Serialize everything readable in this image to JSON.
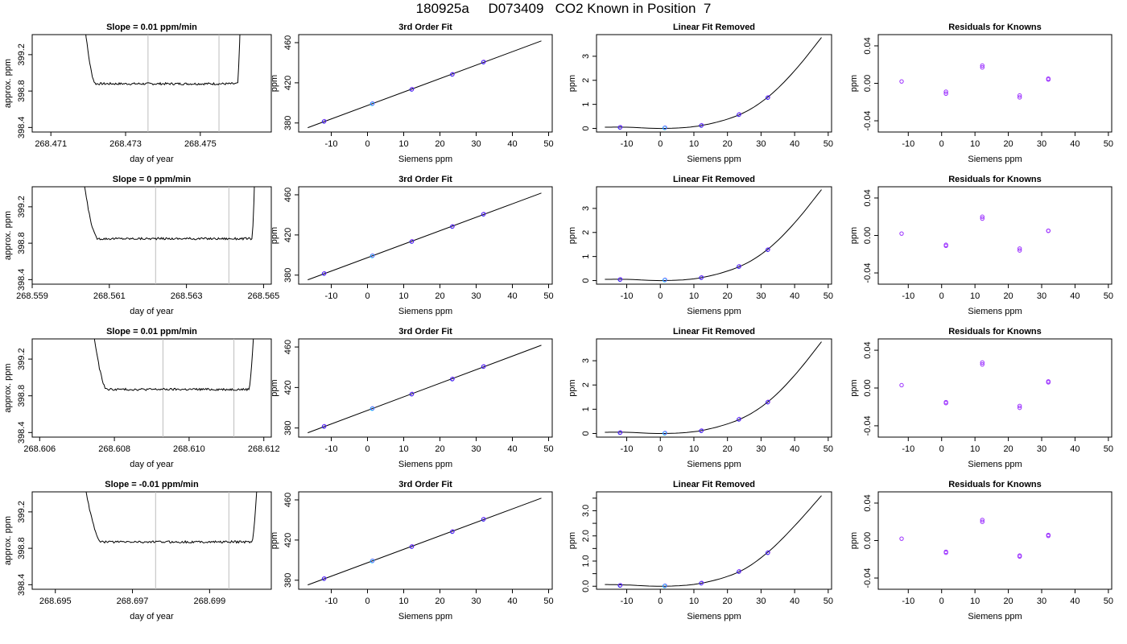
{
  "title": "180925a     D073409   CO2 Known in Position  7",
  "colors": {
    "line": "#000000",
    "cursor": "#bdbdbd",
    "point_blue": "#1e1ee6",
    "point_purple": "#9b30ff",
    "point_cyan": "#00bfff",
    "point_red": "#ff3030"
  },
  "chart_data": [
    {
      "row": 0,
      "col": 0,
      "type": "line",
      "title": "Slope =  0.01  ppm/min",
      "xlabel": "day of year",
      "ylabel": "approx. ppm",
      "xlim": [
        268.4705,
        268.4769
      ],
      "ylim": [
        398.35,
        399.42
      ],
      "xticks": [
        268.471,
        268.473,
        268.475
      ],
      "xtick_labels": [
        "268.471",
        "268.473",
        "268.475"
      ],
      "yticks": [
        398.4,
        398.8,
        399.2
      ],
      "ytick_labels": [
        "398.4",
        "398.8",
        "399.2"
      ],
      "vlines": [
        268.4736,
        268.4755
      ],
      "trace": {
        "x_start": 268.4718,
        "x_end": 268.4761,
        "level": 398.88,
        "noise": 0.012,
        "x_rise_end": 268.4722,
        "x_fall_start": 268.476
      }
    },
    {
      "row": 0,
      "col": 1,
      "type": "scatter",
      "title": "3rd Order Fit",
      "xlabel": "Siemens ppm",
      "ylabel": "ppm",
      "xlim": [
        -19,
        51
      ],
      "ylim": [
        371,
        468
      ],
      "xticks": [
        -10,
        0,
        10,
        20,
        30,
        40,
        50
      ],
      "xtick_labels": [
        "-10",
        "0",
        "10",
        "20",
        "30",
        "40",
        "50"
      ],
      "yticks": [
        380,
        420,
        460
      ],
      "ytick_labels": [
        "380",
        "420",
        "460"
      ],
      "curve": {
        "x_from": -16.5,
        "x_to": 48,
        "slope": 1.34,
        "intercept": 397.4,
        "cubic": 0
      },
      "points": [
        {
          "x": -12.0,
          "y": 381.5
        },
        {
          "x": 1.3,
          "y": 399.1
        },
        {
          "x": 12.2,
          "y": 413.4
        },
        {
          "x": 23.4,
          "y": 428.3
        },
        {
          "x": 32.0,
          "y": 440.6
        }
      ]
    },
    {
      "row": 0,
      "col": 2,
      "type": "scatter",
      "title": "Linear Fit Removed",
      "xlabel": "Siemens ppm",
      "ylabel": "ppm",
      "xlim": [
        -19,
        51
      ],
      "ylim": [
        -0.15,
        3.9
      ],
      "xticks": [
        -10,
        0,
        10,
        20,
        30,
        40,
        50
      ],
      "xtick_labels": [
        "-10",
        "0",
        "10",
        "20",
        "30",
        "40",
        "50"
      ],
      "yticks": [
        0,
        1,
        2,
        3
      ],
      "ytick_labels": [
        "0",
        "1",
        "2",
        "3"
      ],
      "curve": {
        "x_from": -16.5,
        "x_to": 48,
        "a": 0.0,
        "b": 0.0,
        "c": 0.0,
        "d": 0.0,
        "fit": [
          [
            -16.5,
            0.05
          ],
          [
            -10,
            0.05
          ],
          [
            1.3,
            0.0
          ],
          [
            12.2,
            0.12
          ],
          [
            23.4,
            0.56
          ],
          [
            32.0,
            1.3
          ],
          [
            40,
            2.4
          ],
          [
            48,
            3.78
          ]
        ]
      },
      "points": [
        {
          "x": -12.0,
          "y": 0.04
        },
        {
          "x": 1.3,
          "y": 0.02
        },
        {
          "x": 12.2,
          "y": 0.12
        },
        {
          "x": 23.4,
          "y": 0.57
        },
        {
          "x": 32.0,
          "y": 1.28
        }
      ]
    },
    {
      "row": 0,
      "col": 3,
      "type": "scatter",
      "title": "Residuals for Knowns",
      "xlabel": "Siemens ppm",
      "ylabel": "ppm",
      "xlim": [
        -19,
        51
      ],
      "ylim": [
        -0.052,
        0.052
      ],
      "xticks": [
        -10,
        0,
        10,
        20,
        30,
        40,
        50
      ],
      "xtick_labels": [
        "-10",
        "0",
        "10",
        "20",
        "30",
        "40",
        "50"
      ],
      "yticks": [
        -0.04,
        0.0,
        0.04
      ],
      "ytick_labels": [
        "-0.04",
        "0.00",
        "0.04"
      ],
      "points": [
        {
          "x": -12.0,
          "y": 0.002
        },
        {
          "x": 1.3,
          "y": -0.011
        },
        {
          "x": 1.3,
          "y": -0.009
        },
        {
          "x": 12.2,
          "y": 0.017
        },
        {
          "x": 12.2,
          "y": 0.019
        },
        {
          "x": 23.4,
          "y": -0.013
        },
        {
          "x": 23.4,
          "y": -0.015
        },
        {
          "x": 32.0,
          "y": 0.004
        },
        {
          "x": 32.0,
          "y": 0.005
        }
      ]
    },
    {
      "row": 1,
      "col": 0,
      "type": "line",
      "title": "Slope =  0  ppm/min",
      "xlabel": "day of year",
      "ylabel": "approx. ppm",
      "xlim": [
        268.559,
        268.5652
      ],
      "ylim": [
        398.35,
        399.42
      ],
      "xticks": [
        268.559,
        268.561,
        268.563,
        268.565
      ],
      "xtick_labels": [
        "268.559",
        "268.561",
        "268.563",
        "268.565"
      ],
      "yticks": [
        398.4,
        398.8,
        399.2
      ],
      "ytick_labels": [
        "398.4",
        "398.8",
        "399.2"
      ],
      "vlines": [
        268.5622,
        268.5641
      ],
      "trace": {
        "x_start": 268.5602,
        "x_end": 268.5648,
        "level": 398.85,
        "noise": 0.012,
        "x_rise_end": 268.5607,
        "x_fall_start": 268.5647
      }
    },
    {
      "row": 1,
      "col": 1,
      "type": "scatter",
      "title": "3rd Order Fit",
      "xlabel": "Siemens ppm",
      "ylabel": "ppm",
      "xlim": [
        -19,
        51
      ],
      "ylim": [
        371,
        468
      ],
      "xticks": [
        -10,
        0,
        10,
        20,
        30,
        40,
        50
      ],
      "xtick_labels": [
        "-10",
        "0",
        "10",
        "20",
        "30",
        "40",
        "50"
      ],
      "yticks": [
        380,
        420,
        460
      ],
      "ytick_labels": [
        "380",
        "420",
        "460"
      ],
      "curve": {
        "x_from": -16.5,
        "x_to": 48,
        "slope": 1.34,
        "intercept": 397.4,
        "cubic": 0
      },
      "points": [
        {
          "x": -12.0,
          "y": 381.5
        },
        {
          "x": 1.3,
          "y": 399.1
        },
        {
          "x": 12.2,
          "y": 413.4
        },
        {
          "x": 23.4,
          "y": 428.3
        },
        {
          "x": 32.0,
          "y": 440.6
        }
      ]
    },
    {
      "row": 1,
      "col": 2,
      "type": "scatter",
      "title": "Linear Fit Removed",
      "xlabel": "Siemens ppm",
      "ylabel": "ppm",
      "xlim": [
        -19,
        51
      ],
      "ylim": [
        -0.15,
        3.9
      ],
      "xticks": [
        -10,
        0,
        10,
        20,
        30,
        40,
        50
      ],
      "xtick_labels": [
        "-10",
        "0",
        "10",
        "20",
        "30",
        "40",
        "50"
      ],
      "yticks": [
        0,
        1,
        2,
        3
      ],
      "ytick_labels": [
        "0",
        "1",
        "2",
        "3"
      ],
      "curve": {
        "x_from": -16.5,
        "x_to": 48,
        "fit": [
          [
            -16.5,
            0.05
          ],
          [
            -10,
            0.05
          ],
          [
            1.3,
            0.0
          ],
          [
            12.2,
            0.12
          ],
          [
            23.4,
            0.57
          ],
          [
            32.0,
            1.3
          ],
          [
            40,
            2.4
          ],
          [
            48,
            3.78
          ]
        ]
      },
      "points": [
        {
          "x": -12.0,
          "y": 0.04
        },
        {
          "x": 1.3,
          "y": 0.02
        },
        {
          "x": 12.2,
          "y": 0.12
        },
        {
          "x": 23.4,
          "y": 0.58
        },
        {
          "x": 32.0,
          "y": 1.28
        }
      ]
    },
    {
      "row": 1,
      "col": 3,
      "type": "scatter",
      "title": "Residuals for Knowns",
      "xlabel": "Siemens ppm",
      "ylabel": "ppm",
      "xlim": [
        -19,
        51
      ],
      "ylim": [
        -0.052,
        0.052
      ],
      "xticks": [
        -10,
        0,
        10,
        20,
        30,
        40,
        50
      ],
      "xtick_labels": [
        "-10",
        "0",
        "10",
        "20",
        "30",
        "40",
        "50"
      ],
      "yticks": [
        -0.04,
        0.0,
        0.04
      ],
      "ytick_labels": [
        "-0.04",
        "0.00",
        "0.04"
      ],
      "points": [
        {
          "x": -12.0,
          "y": 0.002
        },
        {
          "x": 1.3,
          "y": -0.011
        },
        {
          "x": 1.3,
          "y": -0.01
        },
        {
          "x": 12.2,
          "y": 0.018
        },
        {
          "x": 12.2,
          "y": 0.02
        },
        {
          "x": 23.4,
          "y": -0.014
        },
        {
          "x": 23.4,
          "y": -0.016
        },
        {
          "x": 32.0,
          "y": 0.005
        },
        {
          "x": 32.0,
          "y": 0.005
        }
      ]
    },
    {
      "row": 2,
      "col": 0,
      "type": "line",
      "title": "Slope =  0.01  ppm/min",
      "xlabel": "day of year",
      "ylabel": "approx. ppm",
      "xlim": [
        268.6058,
        268.6122
      ],
      "ylim": [
        398.35,
        399.42
      ],
      "xticks": [
        268.606,
        268.608,
        268.61,
        268.612
      ],
      "xtick_labels": [
        "268.606",
        "268.608",
        "268.610",
        "268.612"
      ],
      "yticks": [
        398.4,
        398.8,
        399.2
      ],
      "ytick_labels": [
        "398.4",
        "398.8",
        "399.2"
      ],
      "vlines": [
        268.6093,
        268.6112
      ],
      "trace": {
        "x_start": 268.6073,
        "x_end": 268.6118,
        "level": 398.87,
        "noise": 0.012,
        "x_rise_end": 268.6078,
        "x_fall_start": 268.6116
      }
    },
    {
      "row": 2,
      "col": 1,
      "type": "scatter",
      "title": "3rd Order Fit",
      "xlabel": "Siemens ppm",
      "ylabel": "ppm",
      "xlim": [
        -19,
        51
      ],
      "ylim": [
        371,
        468
      ],
      "xticks": [
        -10,
        0,
        10,
        20,
        30,
        40,
        50
      ],
      "xtick_labels": [
        "-10",
        "0",
        "10",
        "20",
        "30",
        "40",
        "50"
      ],
      "yticks": [
        380,
        420,
        460
      ],
      "ytick_labels": [
        "380",
        "420",
        "460"
      ],
      "curve": {
        "x_from": -16.5,
        "x_to": 48,
        "slope": 1.34,
        "intercept": 397.4,
        "cubic": 0
      },
      "points": [
        {
          "x": -12.0,
          "y": 381.5
        },
        {
          "x": 1.3,
          "y": 399.1
        },
        {
          "x": 12.2,
          "y": 413.4
        },
        {
          "x": 23.4,
          "y": 428.3
        },
        {
          "x": 32.0,
          "y": 440.6
        }
      ]
    },
    {
      "row": 2,
      "col": 2,
      "type": "scatter",
      "title": "Linear Fit Removed",
      "xlabel": "Siemens ppm",
      "ylabel": "ppm",
      "xlim": [
        -19,
        51
      ],
      "ylim": [
        -0.15,
        3.9
      ],
      "xticks": [
        -10,
        0,
        10,
        20,
        30,
        40,
        50
      ],
      "xtick_labels": [
        "-10",
        "0",
        "10",
        "20",
        "30",
        "40",
        "50"
      ],
      "yticks": [
        0,
        1,
        2,
        3
      ],
      "ytick_labels": [
        "0",
        "1",
        "2",
        "3"
      ],
      "curve": {
        "x_from": -16.5,
        "x_to": 48,
        "fit": [
          [
            -16.5,
            0.05
          ],
          [
            -10,
            0.05
          ],
          [
            1.3,
            0.0
          ],
          [
            12.2,
            0.12
          ],
          [
            23.4,
            0.57
          ],
          [
            32.0,
            1.3
          ],
          [
            40,
            2.4
          ],
          [
            48,
            3.78
          ]
        ]
      },
      "points": [
        {
          "x": -12.0,
          "y": 0.03
        },
        {
          "x": 1.3,
          "y": 0.01
        },
        {
          "x": 12.2,
          "y": 0.11
        },
        {
          "x": 23.4,
          "y": 0.58
        },
        {
          "x": 32.0,
          "y": 1.29
        }
      ]
    },
    {
      "row": 2,
      "col": 3,
      "type": "scatter",
      "title": "Residuals for Knowns",
      "xlabel": "Siemens ppm",
      "ylabel": "ppm",
      "xlim": [
        -19,
        51
      ],
      "ylim": [
        -0.052,
        0.052
      ],
      "xticks": [
        -10,
        0,
        10,
        20,
        30,
        40,
        50
      ],
      "xtick_labels": [
        "-10",
        "0",
        "10",
        "20",
        "30",
        "40",
        "50"
      ],
      "yticks": [
        -0.04,
        0.0,
        0.04
      ],
      "ytick_labels": [
        "-0.04",
        "0.00",
        "0.04"
      ],
      "points": [
        {
          "x": -12.0,
          "y": 0.003
        },
        {
          "x": 1.3,
          "y": -0.015
        },
        {
          "x": 1.3,
          "y": -0.016
        },
        {
          "x": 12.2,
          "y": 0.025
        },
        {
          "x": 12.2,
          "y": 0.027
        },
        {
          "x": 23.4,
          "y": -0.019
        },
        {
          "x": 23.4,
          "y": -0.021
        },
        {
          "x": 32.0,
          "y": 0.006
        },
        {
          "x": 32.0,
          "y": 0.007
        }
      ]
    },
    {
      "row": 3,
      "col": 0,
      "type": "line",
      "title": "Slope =  -0.01  ppm/min",
      "xlabel": "day of year",
      "ylabel": "approx. ppm",
      "xlim": [
        268.6944,
        268.7006
      ],
      "ylim": [
        398.35,
        399.42
      ],
      "xticks": [
        268.695,
        268.697,
        268.699
      ],
      "xtick_labels": [
        "268.695",
        "268.697",
        "268.699"
      ],
      "yticks": [
        398.4,
        398.8,
        399.2
      ],
      "ytick_labels": [
        "398.4",
        "398.8",
        "399.2"
      ],
      "vlines": [
        268.6976,
        268.6995
      ],
      "trace": {
        "x_start": 268.6956,
        "x_end": 268.7003,
        "level": 398.87,
        "noise": 0.012,
        "x_rise_end": 268.6962,
        "x_fall_start": 268.7001
      }
    },
    {
      "row": 3,
      "col": 1,
      "type": "scatter",
      "title": "3rd Order Fit",
      "xlabel": "Siemens ppm",
      "ylabel": "ppm",
      "xlim": [
        -19,
        51
      ],
      "ylim": [
        371,
        468
      ],
      "xticks": [
        -10,
        0,
        10,
        20,
        30,
        40,
        50
      ],
      "xtick_labels": [
        "-10",
        "0",
        "10",
        "20",
        "30",
        "40",
        "50"
      ],
      "yticks": [
        380,
        420,
        460
      ],
      "ytick_labels": [
        "380",
        "420",
        "460"
      ],
      "curve": {
        "x_from": -16.5,
        "x_to": 48,
        "slope": 1.34,
        "intercept": 397.4,
        "cubic": 0
      },
      "points": [
        {
          "x": -12.0,
          "y": 381.5
        },
        {
          "x": 1.3,
          "y": 399.1
        },
        {
          "x": 12.2,
          "y": 413.4
        },
        {
          "x": 23.4,
          "y": 428.3
        },
        {
          "x": 32.0,
          "y": 440.6
        }
      ]
    },
    {
      "row": 3,
      "col": 2,
      "type": "scatter",
      "title": "Linear Fit Removed",
      "xlabel": "Siemens ppm",
      "ylabel": "ppm",
      "xlim": [
        -19,
        51
      ],
      "ylim": [
        -0.12,
        3.75
      ],
      "xticks": [
        -10,
        0,
        10,
        20,
        30,
        40,
        50
      ],
      "xtick_labels": [
        "-10",
        "0",
        "10",
        "20",
        "30",
        "40",
        "50"
      ],
      "yticks": [
        0,
        0.5,
        1,
        1.5,
        2,
        2.5,
        3,
        3.5
      ],
      "ytick_labels": [
        "0.0",
        "",
        "1.0",
        "",
        "2.0",
        "",
        "3.0",
        ""
      ],
      "curve": {
        "x_from": -16.5,
        "x_to": 48,
        "fit": [
          [
            -16.5,
            0.07
          ],
          [
            -10,
            0.05
          ],
          [
            1.3,
            0.0
          ],
          [
            12.2,
            0.12
          ],
          [
            23.4,
            0.57
          ],
          [
            32.0,
            1.35
          ],
          [
            40,
            2.4
          ],
          [
            48,
            3.6
          ]
        ]
      },
      "points": [
        {
          "x": -12.0,
          "y": 0.03
        },
        {
          "x": 1.3,
          "y": 0.01
        },
        {
          "x": 12.2,
          "y": 0.12
        },
        {
          "x": 23.4,
          "y": 0.58
        },
        {
          "x": 32.0,
          "y": 1.33
        }
      ]
    },
    {
      "row": 3,
      "col": 3,
      "type": "scatter",
      "title": "Residuals for Knowns",
      "xlabel": "Siemens ppm",
      "ylabel": "ppm",
      "xlim": [
        -19,
        51
      ],
      "ylim": [
        -0.052,
        0.052
      ],
      "xticks": [
        -10,
        0,
        10,
        20,
        30,
        40,
        50
      ],
      "xtick_labels": [
        "-10",
        "0",
        "10",
        "20",
        "30",
        "40",
        "50"
      ],
      "yticks": [
        -0.04,
        0.0,
        0.04
      ],
      "ytick_labels": [
        "-0.04",
        "0.00",
        "0.04"
      ],
      "points": [
        {
          "x": -12.0,
          "y": 0.002
        },
        {
          "x": 1.3,
          "y": -0.012
        },
        {
          "x": 1.3,
          "y": -0.013
        },
        {
          "x": 12.2,
          "y": 0.02
        },
        {
          "x": 12.2,
          "y": 0.022
        },
        {
          "x": 23.4,
          "y": -0.016
        },
        {
          "x": 23.4,
          "y": -0.017
        },
        {
          "x": 32.0,
          "y": 0.005
        },
        {
          "x": 32.0,
          "y": 0.006
        }
      ]
    }
  ]
}
